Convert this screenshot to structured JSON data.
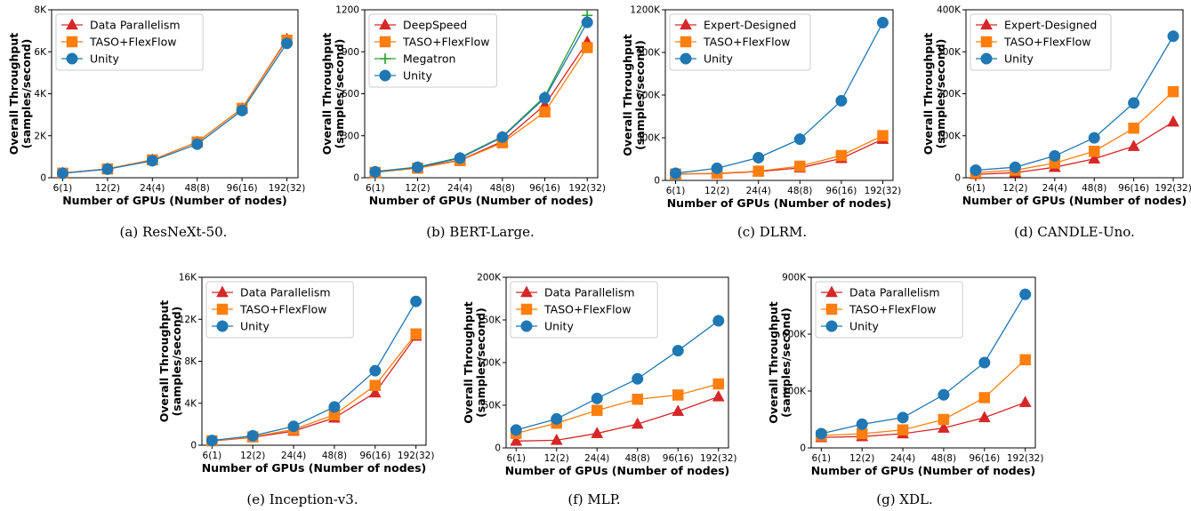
{
  "colors": {
    "red": "#d62728",
    "orange": "#ff7f0e",
    "blue": "#1f77b4",
    "green": "#2ca02c"
  },
  "chart_data": [
    {
      "type": "line",
      "caption": "(a) ResNeXt-50.",
      "xlabel": "Number of GPUs (Number of nodes)",
      "ylabel": "Overall Throughput\n(samples/second)",
      "categories": [
        "6(1)",
        "12(2)",
        "24(4)",
        "48(8)",
        "96(16)",
        "192(32)"
      ],
      "ylim": [
        0,
        8000
      ],
      "yticks": [
        0,
        2000,
        4000,
        6000,
        8000
      ],
      "yticklabels": [
        "0",
        "2K",
        "4K",
        "6K",
        "8K"
      ],
      "legend": "top-left",
      "series": [
        {
          "name": "Data Parallelism",
          "color": "#d62728",
          "marker": "triangle",
          "values": [
            220,
            420,
            850,
            1700,
            3300,
            6600
          ]
        },
        {
          "name": "TASO+FlexFlow",
          "color": "#ff7f0e",
          "marker": "square",
          "values": [
            220,
            420,
            850,
            1700,
            3300,
            6550
          ]
        },
        {
          "name": "Unity",
          "color": "#1f77b4",
          "marker": "circle",
          "values": [
            210,
            410,
            810,
            1600,
            3200,
            6400
          ]
        }
      ]
    },
    {
      "type": "line",
      "caption": "(b) BERT-Large.",
      "xlabel": "Number of GPUs (Number of nodes)",
      "ylabel": "Overall Throughput\n(samples/second)",
      "categories": [
        "6(1)",
        "12(2)",
        "24(4)",
        "48(8)",
        "96(16)",
        "192(32)"
      ],
      "ylim": [
        0,
        1200
      ],
      "yticks": [
        0,
        300,
        600,
        900,
        1200
      ],
      "yticklabels": [
        "0",
        "300",
        "600",
        "900",
        "1200"
      ],
      "legend": "top-left",
      "series": [
        {
          "name": "DeepSpeed",
          "color": "#d62728",
          "marker": "triangle",
          "values": [
            40,
            72,
            125,
            260,
            520,
            970
          ]
        },
        {
          "name": "TASO+FlexFlow",
          "color": "#ff7f0e",
          "marker": "square",
          "values": [
            38,
            68,
            122,
            250,
            470,
            930
          ]
        },
        {
          "name": "Megatron",
          "color": "#2ca02c",
          "marker": "plus",
          "values": [
            44,
            76,
            145,
            295,
            580,
            1160
          ]
        },
        {
          "name": "Unity",
          "color": "#1f77b4",
          "marker": "circle",
          "values": [
            42,
            75,
            140,
            290,
            570,
            1110
          ]
        }
      ]
    },
    {
      "type": "line",
      "caption": "(c) DLRM.",
      "xlabel": "Number of GPUs (Number of nodes)",
      "ylabel": "Overall Throughput\n(samples/second)",
      "categories": [
        "6(1)",
        "12(2)",
        "24(4)",
        "48(8)",
        "96(16)",
        "192(32)"
      ],
      "ylim": [
        0,
        1200000
      ],
      "yticks": [
        0,
        300000,
        600000,
        900000,
        1200000
      ],
      "yticklabels": [
        "0",
        "300K",
        "600K",
        "900K",
        "1200K"
      ],
      "legend": "top-left",
      "series": [
        {
          "name": "Expert-Designed",
          "color": "#d62728",
          "marker": "triangle",
          "values": [
            45000,
            48000,
            62000,
            88000,
            155000,
            290000
          ]
        },
        {
          "name": "TASO+FlexFlow",
          "color": "#ff7f0e",
          "marker": "square",
          "values": [
            45000,
            50000,
            65000,
            100000,
            175000,
            315000
          ]
        },
        {
          "name": "Unity",
          "color": "#1f77b4",
          "marker": "circle",
          "values": [
            50000,
            85000,
            160000,
            290000,
            560000,
            1110000
          ]
        }
      ]
    },
    {
      "type": "line",
      "caption": "(d) CANDLE-Uno.",
      "xlabel": "Number of GPUs (Number of nodes)",
      "ylabel": "Overall Throughput\n(samples/second)",
      "categories": [
        "6(1)",
        "12(2)",
        "24(4)",
        "48(8)",
        "96(16)",
        "192(32)"
      ],
      "ylim": [
        0,
        400000
      ],
      "yticks": [
        0,
        100000,
        200000,
        300000,
        400000
      ],
      "yticklabels": [
        "0",
        "100K",
        "200K",
        "300K",
        "400K"
      ],
      "legend": "top-left",
      "series": [
        {
          "name": "Expert-Designed",
          "color": "#d62728",
          "marker": "triangle",
          "values": [
            8000,
            12000,
            25000,
            45000,
            75000,
            133000
          ]
        },
        {
          "name": "TASO+FlexFlow",
          "color": "#ff7f0e",
          "marker": "square",
          "values": [
            12000,
            18000,
            35000,
            63000,
            118000,
            205000
          ]
        },
        {
          "name": "Unity",
          "color": "#1f77b4",
          "marker": "circle",
          "values": [
            18000,
            25000,
            52000,
            95000,
            178000,
            337000
          ]
        }
      ]
    },
    {
      "type": "line",
      "caption": "(e) Inception-v3.",
      "xlabel": "Number of GPUs (Number of nodes)",
      "ylabel": "Overall Throughput\n(samples/second)",
      "categories": [
        "6(1)",
        "12(2)",
        "24(4)",
        "48(8)",
        "96(16)",
        "192(32)"
      ],
      "ylim": [
        0,
        16000
      ],
      "yticks": [
        0,
        4000,
        8000,
        12000,
        16000
      ],
      "yticklabels": [
        "0",
        "4K",
        "8K",
        "12K",
        "16K"
      ],
      "legend": "top-left",
      "series": [
        {
          "name": "Data Parallelism",
          "color": "#d62728",
          "marker": "triangle",
          "values": [
            400,
            750,
            1350,
            2600,
            5000,
            10400
          ]
        },
        {
          "name": "TASO+FlexFlow",
          "color": "#ff7f0e",
          "marker": "square",
          "values": [
            420,
            800,
            1500,
            2900,
            5700,
            10600
          ]
        },
        {
          "name": "Unity",
          "color": "#1f77b4",
          "marker": "circle",
          "values": [
            450,
            900,
            1800,
            3650,
            7100,
            13700
          ]
        }
      ]
    },
    {
      "type": "line",
      "caption": "(f) MLP.",
      "xlabel": "Number of GPUs (Number of nodes)",
      "ylabel": "Overall Throughput\n(samples/second)",
      "categories": [
        "6(1)",
        "12(2)",
        "24(4)",
        "48(8)",
        "96(16)",
        "192(32)"
      ],
      "ylim": [
        0,
        200000
      ],
      "yticks": [
        0,
        50000,
        100000,
        150000,
        200000
      ],
      "yticklabels": [
        "0",
        "50K",
        "100K",
        "150K",
        "200K"
      ],
      "legend": "top-left",
      "series": [
        {
          "name": "Data Parallelism",
          "color": "#d62728",
          "marker": "triangle",
          "values": [
            8000,
            9000,
            17000,
            28000,
            43000,
            60000
          ]
        },
        {
          "name": "TASO+FlexFlow",
          "color": "#ff7f0e",
          "marker": "square",
          "values": [
            17000,
            29000,
            44000,
            57000,
            62000,
            75000
          ]
        },
        {
          "name": "Unity",
          "color": "#1f77b4",
          "marker": "circle",
          "values": [
            21000,
            34000,
            58000,
            81000,
            114000,
            149000
          ]
        }
      ]
    },
    {
      "type": "line",
      "caption": "(g) XDL.",
      "xlabel": "Number of GPUs (Number of nodes)",
      "ylabel": "Overall Throughput\n(samples/second)",
      "categories": [
        "6(1)",
        "12(2)",
        "24(4)",
        "48(8)",
        "96(16)",
        "192(32)"
      ],
      "ylim": [
        0,
        900000
      ],
      "yticks": [
        0,
        300000,
        600000,
        900000
      ],
      "yticklabels": [
        "0",
        "300K",
        "600K",
        "900K"
      ],
      "legend": "top-left",
      "series": [
        {
          "name": "Data Parallelism",
          "color": "#d62728",
          "marker": "triangle",
          "values": [
            55000,
            60000,
            75000,
            105000,
            160000,
            240000
          ]
        },
        {
          "name": "TASO+FlexFlow",
          "color": "#ff7f0e",
          "marker": "square",
          "values": [
            65000,
            75000,
            95000,
            150000,
            265000,
            465000
          ]
        },
        {
          "name": "Unity",
          "color": "#1f77b4",
          "marker": "circle",
          "values": [
            75000,
            125000,
            160000,
            280000,
            450000,
            810000
          ]
        }
      ]
    }
  ]
}
